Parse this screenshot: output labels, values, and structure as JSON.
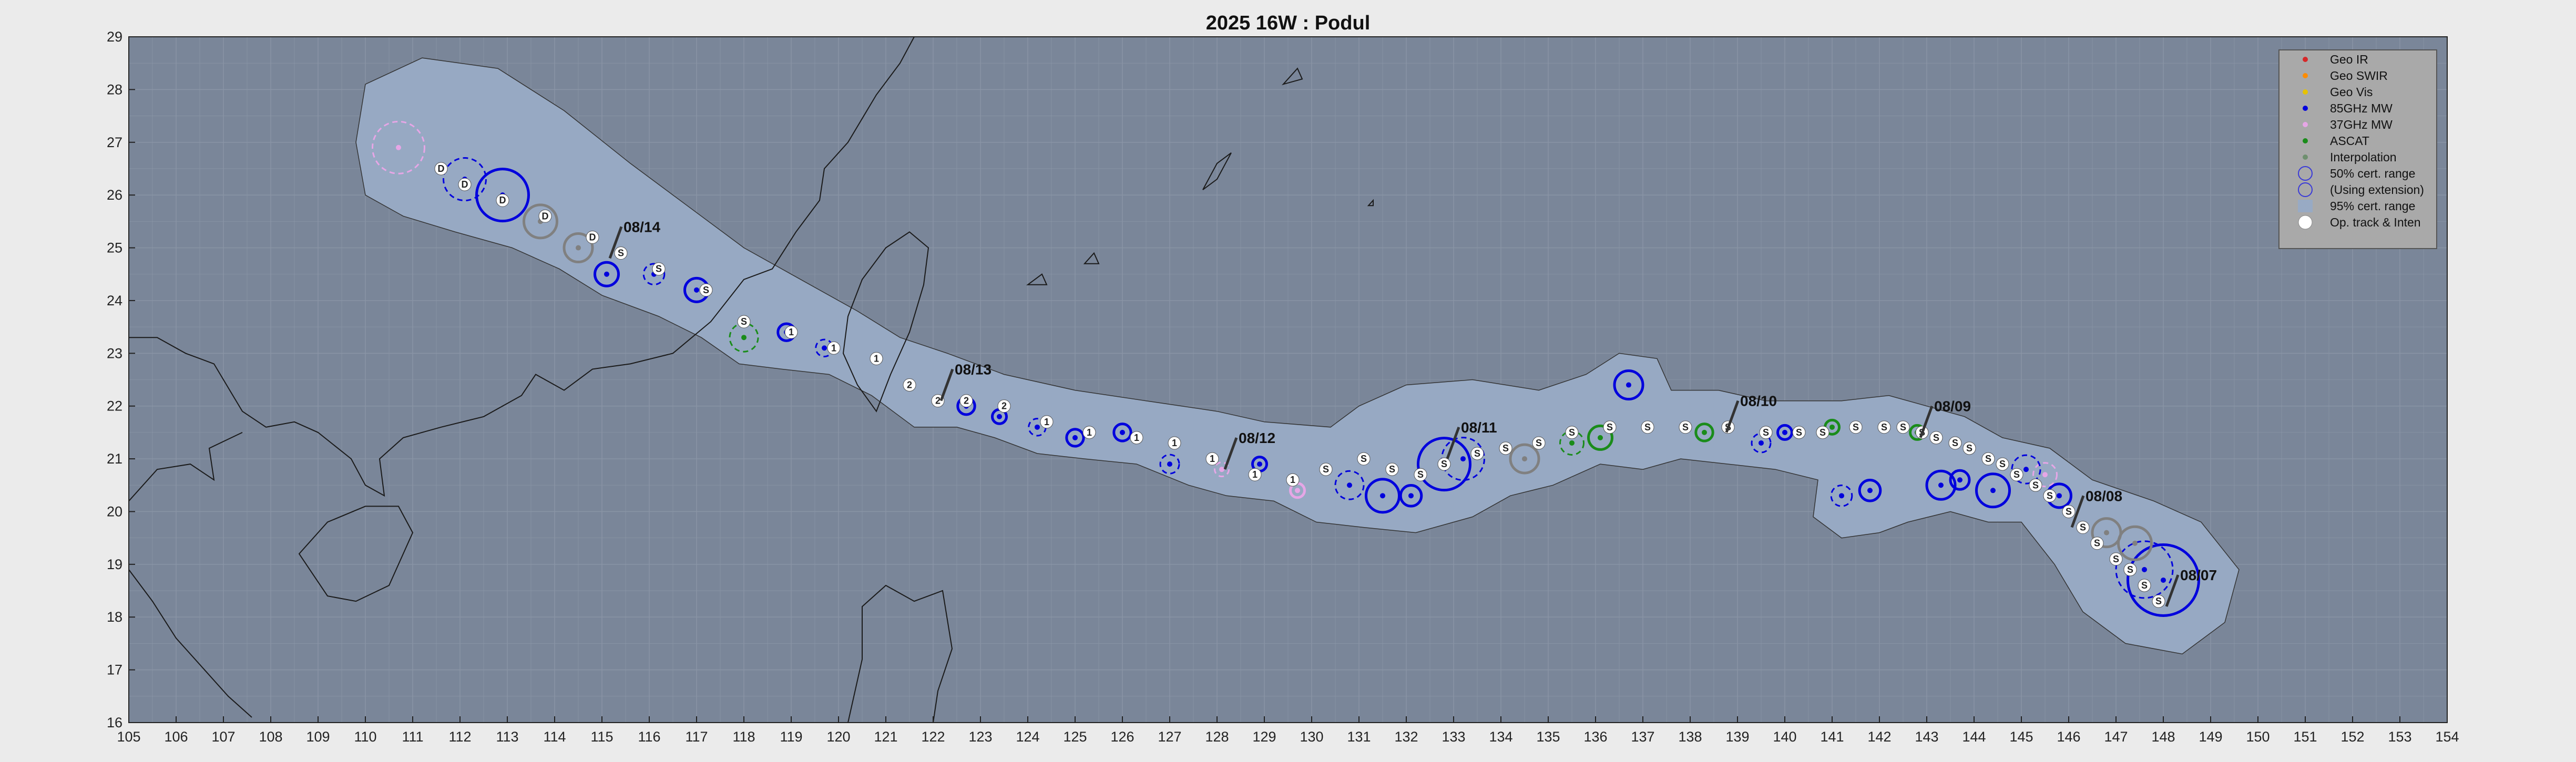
{
  "chart_data": {
    "type": "map",
    "title": "2025  16W :  Podul",
    "xlim": [
      105,
      154
    ],
    "ylim": [
      16,
      29
    ],
    "xticks": [
      105,
      106,
      107,
      108,
      109,
      110,
      111,
      112,
      113,
      114,
      115,
      116,
      117,
      118,
      119,
      120,
      121,
      122,
      123,
      124,
      125,
      126,
      127,
      128,
      129,
      130,
      131,
      132,
      133,
      134,
      135,
      136,
      137,
      138,
      139,
      140,
      141,
      142,
      143,
      144,
      145,
      146,
      147,
      148,
      149,
      150,
      151,
      152,
      153,
      154
    ],
    "yticks": [
      16,
      17,
      18,
      19,
      20,
      21,
      22,
      23,
      24,
      25,
      26,
      27,
      28,
      29
    ],
    "grid": true,
    "legend_position": "top-right",
    "legend": [
      {
        "label": "Geo IR",
        "kind": "dot",
        "color": "#d62728"
      },
      {
        "label": "Geo SWIR",
        "kind": "dot",
        "color": "#ff8c00"
      },
      {
        "label": "Geo Vis",
        "kind": "dot",
        "color": "#e6c200"
      },
      {
        "label": "85GHz MW",
        "kind": "dot",
        "color": "#0000dd"
      },
      {
        "label": "37GHz MW",
        "kind": "dot",
        "color": "#e6a6e6"
      },
      {
        "label": "ASCAT",
        "kind": "dot",
        "color": "#1a8c1a"
      },
      {
        "label": "Interpolation",
        "kind": "dot",
        "color": "#6f8f6f"
      },
      {
        "label": "50% cert. range",
        "kind": "ring",
        "color": "#3a3ad8"
      },
      {
        "label": "(Using extension)",
        "kind": "ring",
        "color": "#3a3ad8"
      },
      {
        "label": "95% cert. range",
        "kind": "patch",
        "color": "#98aac4"
      },
      {
        "label": "Op. track & Inten",
        "kind": "whitedot",
        "color": "#ffffff"
      }
    ],
    "colors": {
      "ocean": "#7a8699",
      "cone": "#97a9c3",
      "coast": "#1a1a1a",
      "fix_85ghz": "#0000dd",
      "fix_37ghz": "#e6a6e6",
      "fix_ascat": "#1a8c1a",
      "fix_interp": "#808080"
    },
    "date_labels": [
      {
        "text": "08/07",
        "lon": 148.2,
        "lat": 18.7
      },
      {
        "text": "08/08",
        "lon": 146.2,
        "lat": 20.2
      },
      {
        "text": "08/09",
        "lon": 143.0,
        "lat": 21.9
      },
      {
        "text": "08/10",
        "lon": 138.9,
        "lat": 22.0
      },
      {
        "text": "08/11",
        "lon": 133.0,
        "lat": 21.5
      },
      {
        "text": "08/12",
        "lon": 128.3,
        "lat": 21.3
      },
      {
        "text": "08/13",
        "lon": 122.3,
        "lat": 22.6
      },
      {
        "text": "08/14",
        "lon": 115.3,
        "lat": 25.3
      }
    ],
    "track": [
      {
        "lon": 147.9,
        "lat": 18.3,
        "s": "S"
      },
      {
        "lon": 147.6,
        "lat": 18.6,
        "s": "S"
      },
      {
        "lon": 147.3,
        "lat": 18.9,
        "s": "S"
      },
      {
        "lon": 147.0,
        "lat": 19.1,
        "s": "S"
      },
      {
        "lon": 146.6,
        "lat": 19.4,
        "s": "S"
      },
      {
        "lon": 146.3,
        "lat": 19.7,
        "s": "S"
      },
      {
        "lon": 146.0,
        "lat": 20.0,
        "s": "S"
      },
      {
        "lon": 145.6,
        "lat": 20.3,
        "s": "S"
      },
      {
        "lon": 145.3,
        "lat": 20.5,
        "s": "S"
      },
      {
        "lon": 144.9,
        "lat": 20.7,
        "s": "S"
      },
      {
        "lon": 144.6,
        "lat": 20.9,
        "s": "S"
      },
      {
        "lon": 144.3,
        "lat": 21.0,
        "s": "S"
      },
      {
        "lon": 143.9,
        "lat": 21.2,
        "s": "S"
      },
      {
        "lon": 143.6,
        "lat": 21.3,
        "s": "S"
      },
      {
        "lon": 143.2,
        "lat": 21.4,
        "s": "S"
      },
      {
        "lon": 142.9,
        "lat": 21.5,
        "s": "S"
      },
      {
        "lon": 142.5,
        "lat": 21.6,
        "s": "S"
      },
      {
        "lon": 142.1,
        "lat": 21.6,
        "s": "S"
      },
      {
        "lon": 141.5,
        "lat": 21.6,
        "s": "S"
      },
      {
        "lon": 140.8,
        "lat": 21.5,
        "s": "S"
      },
      {
        "lon": 140.3,
        "lat": 21.5,
        "s": "S"
      },
      {
        "lon": 139.6,
        "lat": 21.5,
        "s": "S"
      },
      {
        "lon": 138.8,
        "lat": 21.6,
        "s": "S"
      },
      {
        "lon": 137.9,
        "lat": 21.6,
        "s": "S"
      },
      {
        "lon": 137.1,
        "lat": 21.6,
        "s": "S"
      },
      {
        "lon": 136.3,
        "lat": 21.6,
        "s": "S"
      },
      {
        "lon": 135.5,
        "lat": 21.5,
        "s": "S"
      },
      {
        "lon": 134.8,
        "lat": 21.3,
        "s": "S"
      },
      {
        "lon": 134.1,
        "lat": 21.2,
        "s": "S"
      },
      {
        "lon": 133.5,
        "lat": 21.1,
        "s": "S"
      },
      {
        "lon": 132.8,
        "lat": 20.9,
        "s": "S"
      },
      {
        "lon": 132.3,
        "lat": 20.7,
        "s": "S"
      },
      {
        "lon": 131.7,
        "lat": 20.8,
        "s": "S"
      },
      {
        "lon": 131.1,
        "lat": 21.0,
        "s": "S"
      },
      {
        "lon": 130.3,
        "lat": 20.8,
        "s": "S"
      },
      {
        "lon": 129.6,
        "lat": 20.6,
        "s": "1"
      },
      {
        "lon": 128.8,
        "lat": 20.7,
        "s": "1"
      },
      {
        "lon": 127.9,
        "lat": 21.0,
        "s": "1"
      },
      {
        "lon": 127.1,
        "lat": 21.3,
        "s": "1"
      },
      {
        "lon": 126.3,
        "lat": 21.4,
        "s": "1"
      },
      {
        "lon": 125.3,
        "lat": 21.5,
        "s": "1"
      },
      {
        "lon": 124.4,
        "lat": 21.7,
        "s": "1"
      },
      {
        "lon": 123.5,
        "lat": 22.0,
        "s": "2"
      },
      {
        "lon": 122.7,
        "lat": 22.1,
        "s": "2"
      },
      {
        "lon": 122.1,
        "lat": 22.1,
        "s": "2"
      },
      {
        "lon": 121.5,
        "lat": 22.4,
        "s": "2"
      },
      {
        "lon": 120.8,
        "lat": 22.9,
        "s": "1"
      },
      {
        "lon": 119.9,
        "lat": 23.1,
        "s": "1"
      },
      {
        "lon": 119.0,
        "lat": 23.4,
        "s": "1"
      },
      {
        "lon": 118.0,
        "lat": 23.6,
        "s": "S"
      },
      {
        "lon": 117.2,
        "lat": 24.2,
        "s": "S"
      },
      {
        "lon": 116.2,
        "lat": 24.6,
        "s": "S"
      },
      {
        "lon": 115.4,
        "lat": 24.9,
        "s": "S"
      },
      {
        "lon": 114.8,
        "lat": 25.2,
        "s": "D"
      },
      {
        "lon": 113.8,
        "lat": 25.6,
        "s": "D"
      },
      {
        "lon": 112.9,
        "lat": 25.9,
        "s": "D"
      },
      {
        "lon": 112.1,
        "lat": 26.2,
        "s": "D"
      },
      {
        "lon": 111.6,
        "lat": 26.5,
        "s": "D"
      }
    ],
    "fixes": [
      {
        "lon": 148.0,
        "lat": 18.7,
        "type": "85GHz MW",
        "r": 0.75,
        "dash": false
      },
      {
        "lon": 147.6,
        "lat": 18.9,
        "type": "85GHz MW",
        "r": 0.6,
        "dash": true
      },
      {
        "lon": 147.4,
        "lat": 19.4,
        "type": "Interpolation",
        "r": 0.35,
        "dash": false
      },
      {
        "lon": 146.8,
        "lat": 19.6,
        "type": "Interpolation",
        "r": 0.3,
        "dash": false
      },
      {
        "lon": 145.8,
        "lat": 20.3,
        "type": "85GHz MW",
        "r": 0.25,
        "dash": false
      },
      {
        "lon": 145.5,
        "lat": 20.7,
        "type": "37GHz MW",
        "r": 0.25,
        "dash": true
      },
      {
        "lon": 145.1,
        "lat": 20.8,
        "type": "85GHz MW",
        "r": 0.3,
        "dash": true
      },
      {
        "lon": 144.4,
        "lat": 20.4,
        "type": "85GHz MW",
        "r": 0.35,
        "dash": false
      },
      {
        "lon": 143.7,
        "lat": 20.6,
        "type": "85GHz MW",
        "r": 0.2,
        "dash": false
      },
      {
        "lon": 143.3,
        "lat": 20.5,
        "type": "85GHz MW",
        "r": 0.3,
        "dash": false
      },
      {
        "lon": 141.8,
        "lat": 20.4,
        "type": "85GHz MW",
        "r": 0.22,
        "dash": false
      },
      {
        "lon": 141.2,
        "lat": 20.3,
        "type": "85GHz MW",
        "r": 0.22,
        "dash": true
      },
      {
        "lon": 142.8,
        "lat": 21.5,
        "type": "ASCAT",
        "r": 0.15,
        "dash": false
      },
      {
        "lon": 141.0,
        "lat": 21.6,
        "type": "ASCAT",
        "r": 0.15,
        "dash": false
      },
      {
        "lon": 140.0,
        "lat": 21.5,
        "type": "85GHz MW",
        "r": 0.15,
        "dash": false
      },
      {
        "lon": 139.5,
        "lat": 21.3,
        "type": "85GHz MW",
        "r": 0.2,
        "dash": true
      },
      {
        "lon": 138.3,
        "lat": 21.5,
        "type": "ASCAT",
        "r": 0.18,
        "dash": false
      },
      {
        "lon": 136.1,
        "lat": 21.4,
        "type": "ASCAT",
        "r": 0.25,
        "dash": false
      },
      {
        "lon": 135.5,
        "lat": 21.3,
        "type": "ASCAT",
        "r": 0.25,
        "dash": true
      },
      {
        "lon": 136.7,
        "lat": 22.4,
        "type": "85GHz MW",
        "r": 0.3,
        "dash": false
      },
      {
        "lon": 134.5,
        "lat": 21.0,
        "type": "Interpolation",
        "r": 0.3,
        "dash": false
      },
      {
        "lon": 132.8,
        "lat": 20.9,
        "type": "85GHz MW",
        "r": 0.55,
        "dash": false
      },
      {
        "lon": 133.2,
        "lat": 21.0,
        "type": "85GHz MW",
        "r": 0.45,
        "dash": true
      },
      {
        "lon": 132.1,
        "lat": 20.3,
        "type": "85GHz MW",
        "r": 0.22,
        "dash": false
      },
      {
        "lon": 131.5,
        "lat": 20.3,
        "type": "85GHz MW",
        "r": 0.35,
        "dash": false
      },
      {
        "lon": 130.8,
        "lat": 20.5,
        "type": "85GHz MW",
        "r": 0.3,
        "dash": true
      },
      {
        "lon": 129.7,
        "lat": 20.4,
        "type": "37GHz MW",
        "r": 0.15,
        "dash": false
      },
      {
        "lon": 128.9,
        "lat": 20.9,
        "type": "85GHz MW",
        "r": 0.15,
        "dash": false
      },
      {
        "lon": 128.1,
        "lat": 20.8,
        "type": "37GHz MW",
        "r": 0.15,
        "dash": true
      },
      {
        "lon": 127.0,
        "lat": 20.9,
        "type": "85GHz MW",
        "r": 0.2,
        "dash": true
      },
      {
        "lon": 126.0,
        "lat": 21.5,
        "type": "85GHz MW",
        "r": 0.18,
        "dash": false
      },
      {
        "lon": 125.0,
        "lat": 21.4,
        "type": "85GHz MW",
        "r": 0.18,
        "dash": false
      },
      {
        "lon": 124.2,
        "lat": 21.6,
        "type": "85GHz MW",
        "r": 0.18,
        "dash": true
      },
      {
        "lon": 123.4,
        "lat": 21.8,
        "type": "85GHz MW",
        "r": 0.15,
        "dash": false
      },
      {
        "lon": 122.7,
        "lat": 22.0,
        "type": "85GHz MW",
        "r": 0.18,
        "dash": false
      },
      {
        "lon": 119.7,
        "lat": 23.1,
        "type": "85GHz MW",
        "r": 0.18,
        "dash": true
      },
      {
        "lon": 118.9,
        "lat": 23.4,
        "type": "85GHz MW",
        "r": 0.18,
        "dash": false
      },
      {
        "lon": 118.0,
        "lat": 23.3,
        "type": "ASCAT",
        "r": 0.3,
        "dash": true
      },
      {
        "lon": 117.0,
        "lat": 24.2,
        "type": "85GHz MW",
        "r": 0.25,
        "dash": false
      },
      {
        "lon": 116.1,
        "lat": 24.5,
        "type": "85GHz MW",
        "r": 0.22,
        "dash": true
      },
      {
        "lon": 115.1,
        "lat": 24.5,
        "type": "85GHz MW",
        "r": 0.25,
        "dash": false
      },
      {
        "lon": 114.5,
        "lat": 25.0,
        "type": "Interpolation",
        "r": 0.3,
        "dash": false
      },
      {
        "lon": 113.7,
        "lat": 25.5,
        "type": "Interpolation",
        "r": 0.35,
        "dash": false
      },
      {
        "lon": 112.9,
        "lat": 26.0,
        "type": "85GHz MW",
        "r": 0.55,
        "dash": false
      },
      {
        "lon": 112.1,
        "lat": 26.3,
        "type": "85GHz MW",
        "r": 0.45,
        "dash": true
      },
      {
        "lon": 110.7,
        "lat": 26.9,
        "type": "37GHz MW",
        "r": 0.55,
        "dash": true
      }
    ]
  }
}
